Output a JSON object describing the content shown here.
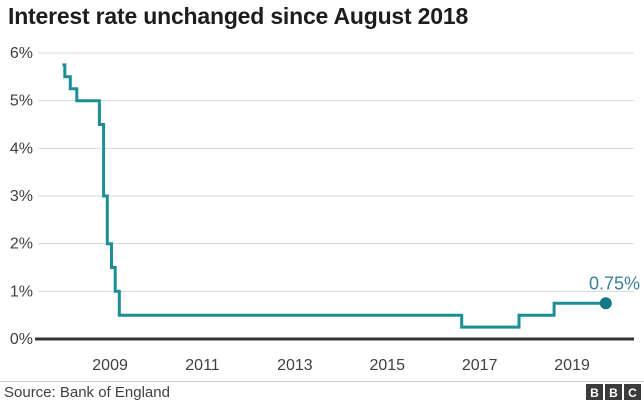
{
  "title": "Interest rate unchanged since August 2018",
  "source_label": "Source: Bank of England",
  "logo": {
    "letters": [
      "B",
      "B",
      "C"
    ]
  },
  "colors": {
    "line": "#1a8f96",
    "end_dot": "#16768c",
    "end_label": "#3b7f97",
    "grid": "#d9d9d9",
    "axis": "#333333",
    "tick_text": "#404040",
    "title_text": "#1d1d1d",
    "source_text": "#3f3f3f",
    "logo_bg": "#3b3b3b"
  },
  "chart_data": {
    "type": "line",
    "step": true,
    "title": "Interest rate unchanged since August 2018",
    "xlabel": "",
    "ylabel": "",
    "unit": "%",
    "xlim": [
      2007.44,
      2020.34
    ],
    "ylim": [
      0,
      6
    ],
    "grid": true,
    "x_ticks": [
      {
        "value": 2009,
        "label": "2009"
      },
      {
        "value": 2011,
        "label": "2011"
      },
      {
        "value": 2013,
        "label": "2013"
      },
      {
        "value": 2015,
        "label": "2015"
      },
      {
        "value": 2017,
        "label": "2017"
      },
      {
        "value": 2019,
        "label": "2019"
      }
    ],
    "y_ticks": [
      {
        "value": 0,
        "label": "0%"
      },
      {
        "value": 1,
        "label": "1%"
      },
      {
        "value": 2,
        "label": "2%"
      },
      {
        "value": 3,
        "label": "3%"
      },
      {
        "value": 4,
        "label": "4%"
      },
      {
        "value": 5,
        "label": "5%"
      },
      {
        "value": 6,
        "label": "6%"
      }
    ],
    "end_annotation": {
      "label": "0.75%",
      "value": 0.75
    },
    "series": [
      {
        "name": "Interest rate",
        "points": [
          {
            "x": 2007.97,
            "y": 5.75
          },
          {
            "x": 2008.02,
            "y": 5.5
          },
          {
            "x": 2008.14,
            "y": 5.25
          },
          {
            "x": 2008.28,
            "y": 5.0
          },
          {
            "x": 2008.77,
            "y": 4.5
          },
          {
            "x": 2008.86,
            "y": 3.0
          },
          {
            "x": 2008.94,
            "y": 2.0
          },
          {
            "x": 2009.03,
            "y": 1.5
          },
          {
            "x": 2009.11,
            "y": 1.0
          },
          {
            "x": 2009.2,
            "y": 0.5
          },
          {
            "x": 2016.61,
            "y": 0.25
          },
          {
            "x": 2017.85,
            "y": 0.5
          },
          {
            "x": 2018.61,
            "y": 0.75
          },
          {
            "x": 2019.73,
            "y": 0.75
          }
        ]
      }
    ]
  }
}
